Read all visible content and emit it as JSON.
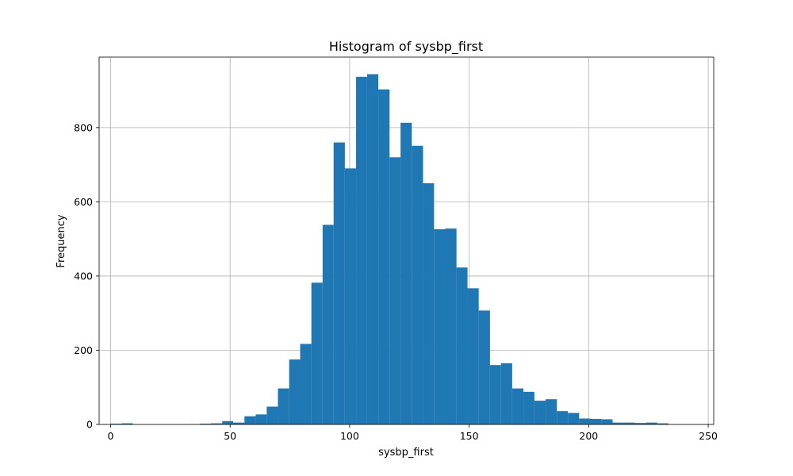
{
  "chart_data": {
    "type": "bar",
    "title": "Histogram of sysbp_first",
    "xlabel": "sysbp_first",
    "ylabel": "Frequency",
    "xlim": [
      -4.8,
      252.3
    ],
    "ylim": [
      0,
      990
    ],
    "xticks": [
      0,
      50,
      100,
      150,
      200,
      250
    ],
    "yticks": [
      0,
      200,
      400,
      600,
      800
    ],
    "grid": true,
    "bar_color": "#1f77b4",
    "bins": [
      {
        "x0": 0.0,
        "x1": 4.7,
        "value": 2
      },
      {
        "x0": 4.7,
        "x1": 9.3,
        "value": 3
      },
      {
        "x0": 9.3,
        "x1": 14.0,
        "value": 0
      },
      {
        "x0": 14.0,
        "x1": 18.7,
        "value": 0
      },
      {
        "x0": 18.7,
        "x1": 23.3,
        "value": 0
      },
      {
        "x0": 23.3,
        "x1": 28.0,
        "value": 0
      },
      {
        "x0": 28.0,
        "x1": 32.7,
        "value": 0
      },
      {
        "x0": 32.7,
        "x1": 37.3,
        "value": 0
      },
      {
        "x0": 37.3,
        "x1": 42.0,
        "value": 2
      },
      {
        "x0": 42.0,
        "x1": 46.7,
        "value": 3
      },
      {
        "x0": 46.7,
        "x1": 51.3,
        "value": 9
      },
      {
        "x0": 51.3,
        "x1": 56.0,
        "value": 5
      },
      {
        "x0": 56.0,
        "x1": 60.7,
        "value": 22
      },
      {
        "x0": 60.7,
        "x1": 65.3,
        "value": 27
      },
      {
        "x0": 65.3,
        "x1": 70.0,
        "value": 48
      },
      {
        "x0": 70.0,
        "x1": 74.7,
        "value": 97
      },
      {
        "x0": 74.7,
        "x1": 79.3,
        "value": 175
      },
      {
        "x0": 79.3,
        "x1": 84.0,
        "value": 217
      },
      {
        "x0": 84.0,
        "x1": 88.7,
        "value": 382
      },
      {
        "x0": 88.7,
        "x1": 93.3,
        "value": 538
      },
      {
        "x0": 93.3,
        "x1": 98.0,
        "value": 760
      },
      {
        "x0": 98.0,
        "x1": 102.7,
        "value": 690
      },
      {
        "x0": 102.7,
        "x1": 107.3,
        "value": 937
      },
      {
        "x0": 107.3,
        "x1": 112.0,
        "value": 944
      },
      {
        "x0": 112.0,
        "x1": 116.7,
        "value": 903
      },
      {
        "x0": 116.7,
        "x1": 121.3,
        "value": 720
      },
      {
        "x0": 121.3,
        "x1": 126.0,
        "value": 813
      },
      {
        "x0": 126.0,
        "x1": 130.7,
        "value": 751
      },
      {
        "x0": 130.7,
        "x1": 135.3,
        "value": 650
      },
      {
        "x0": 135.3,
        "x1": 140.0,
        "value": 526
      },
      {
        "x0": 140.0,
        "x1": 144.7,
        "value": 528
      },
      {
        "x0": 144.7,
        "x1": 149.3,
        "value": 423
      },
      {
        "x0": 149.3,
        "x1": 154.0,
        "value": 367
      },
      {
        "x0": 154.0,
        "x1": 158.7,
        "value": 307
      },
      {
        "x0": 158.7,
        "x1": 163.3,
        "value": 160
      },
      {
        "x0": 163.3,
        "x1": 168.0,
        "value": 165
      },
      {
        "x0": 168.0,
        "x1": 172.7,
        "value": 97
      },
      {
        "x0": 172.7,
        "x1": 177.3,
        "value": 88
      },
      {
        "x0": 177.3,
        "x1": 182.0,
        "value": 64
      },
      {
        "x0": 182.0,
        "x1": 186.7,
        "value": 68
      },
      {
        "x0": 186.7,
        "x1": 191.3,
        "value": 36
      },
      {
        "x0": 191.3,
        "x1": 196.0,
        "value": 31
      },
      {
        "x0": 196.0,
        "x1": 200.7,
        "value": 16
      },
      {
        "x0": 200.7,
        "x1": 205.3,
        "value": 15
      },
      {
        "x0": 205.3,
        "x1": 210.0,
        "value": 14
      },
      {
        "x0": 210.0,
        "x1": 214.7,
        "value": 5
      },
      {
        "x0": 214.7,
        "x1": 219.3,
        "value": 5
      },
      {
        "x0": 219.3,
        "x1": 224.0,
        "value": 4
      },
      {
        "x0": 224.0,
        "x1": 228.7,
        "value": 5
      },
      {
        "x0": 228.7,
        "x1": 233.3,
        "value": 3
      }
    ]
  }
}
